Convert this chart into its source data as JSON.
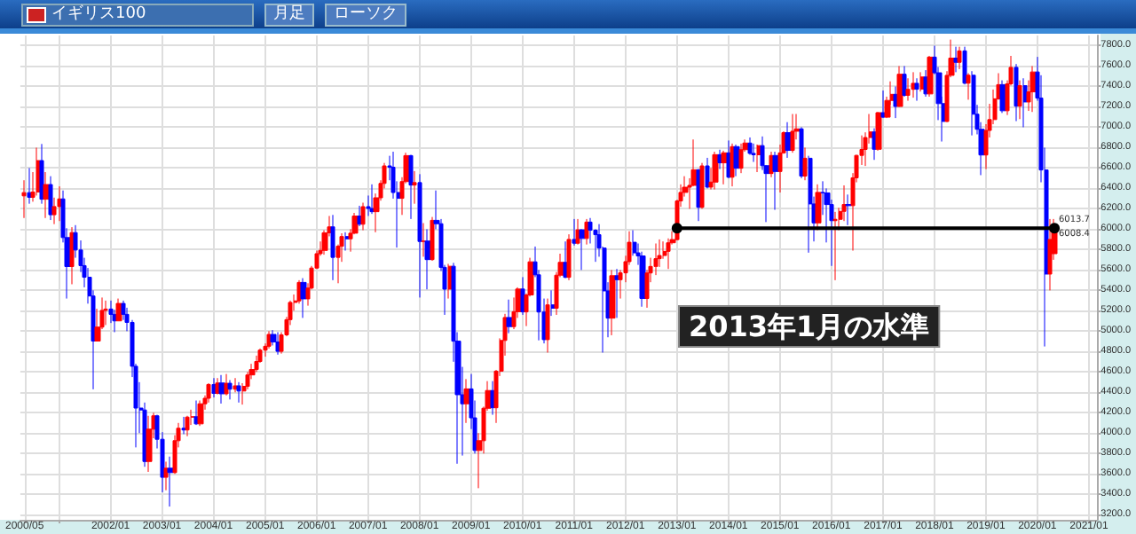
{
  "chart_data": {
    "type": "candlestick",
    "title": "イギリス100",
    "annotations": [
      "月足",
      "ローソク",
      "2013年1月の水準",
      {
        "text": "6013.7",
        "x": "2020-06",
        "y": 6013.7
      },
      {
        "text": "6008.4",
        "x": "2020-06",
        "y": 6008.4
      }
    ],
    "xlim": [
      "2000-04",
      "2021-03"
    ],
    "xticks": [
      {
        "value": "2000-05",
        "label": "2000/05"
      },
      {
        "value": "2001-01",
        "label": null
      },
      {
        "value": "2002-01",
        "label": "2002/01"
      },
      {
        "value": "2003-01",
        "label": "2003/01"
      },
      {
        "value": "2004-01",
        "label": "2004/01"
      },
      {
        "value": "2005-01",
        "label": "2005/01"
      },
      {
        "value": "2006-01",
        "label": "2006/01"
      },
      {
        "value": "2007-01",
        "label": "2007/01"
      },
      {
        "value": "2008-01",
        "label": "2008/01"
      },
      {
        "value": "2009-01",
        "label": "2009/01"
      },
      {
        "value": "2010-01",
        "label": "2010/01"
      },
      {
        "value": "2011-01",
        "label": "2011/01"
      },
      {
        "value": "2012-01",
        "label": "2012/01"
      },
      {
        "value": "2013-01",
        "label": "2013/01"
      },
      {
        "value": "2014-01",
        "label": "2014/01"
      },
      {
        "value": "2015-01",
        "label": "2015/01"
      },
      {
        "value": "2016-01",
        "label": "2016/01"
      },
      {
        "value": "2017-01",
        "label": "2017/01"
      },
      {
        "value": "2018-01",
        "label": "2018/01"
      },
      {
        "value": "2019-01",
        "label": "2019/01"
      },
      {
        "value": "2020-01",
        "label": "2020/01"
      },
      {
        "value": "2021-01",
        "label": "2021/01"
      }
    ],
    "ylim": [
      3150,
      7900
    ],
    "yticks": [
      {
        "value": 3200,
        "label": "3200.0"
      },
      {
        "value": 3400,
        "label": "3400.0"
      },
      {
        "value": 3600,
        "label": "3600.0"
      },
      {
        "value": 3800,
        "label": "3800.0"
      },
      {
        "value": 4000,
        "label": "4000.0"
      },
      {
        "value": 4200,
        "label": "4200.0"
      },
      {
        "value": 4400,
        "label": "4400.0"
      },
      {
        "value": 4600,
        "label": "4600.0"
      },
      {
        "value": 4800,
        "label": "4800.0"
      },
      {
        "value": 5000,
        "label": "5000.0"
      },
      {
        "value": 5200,
        "label": "5200.0"
      },
      {
        "value": 5400,
        "label": "5400.0"
      },
      {
        "value": 5600,
        "label": "5600.0"
      },
      {
        "value": 5800,
        "label": "5800.0"
      },
      {
        "value": 6000,
        "label": "6000.0"
      },
      {
        "value": 6200,
        "label": "6200.0"
      },
      {
        "value": 6400,
        "label": "6400.0"
      },
      {
        "value": 6600,
        "label": "6600.0"
      },
      {
        "value": 6800,
        "label": "6800.0"
      },
      {
        "value": 7000,
        "label": "7000.0"
      },
      {
        "value": 7200,
        "label": "7200.0"
      },
      {
        "value": 7400,
        "label": "7400.0"
      },
      {
        "value": 7600,
        "label": "7600.0"
      },
      {
        "value": 7800,
        "label": "7800.0"
      }
    ],
    "grid": true,
    "series": [
      {
        "colors": [
          "#ff0000",
          "#0000ff",
          "#ff0000",
          "#ff0000",
          "#0000ff",
          "#ff0000",
          "#0000ff",
          "#ff0000",
          "#ff0000",
          "#0000ff",
          "#0000ff",
          "#ff0000",
          "#0000ff",
          "#0000ff",
          "#0000ff",
          "#0000ff",
          "#0000ff",
          "#ff0000",
          "#ff0000",
          "#ff0000",
          "#0000ff",
          "#0000ff",
          "#ff0000",
          "#0000ff",
          "#0000ff",
          "#0000ff",
          "#0000ff",
          "#0000ff",
          "#0000ff",
          "#ff0000",
          "#ff0000",
          "#0000ff",
          "#0000ff",
          "#ff0000",
          "#0000ff",
          "#ff0000",
          "#ff0000",
          "#0000ff",
          "#ff0000",
          "#ff0000",
          "#0000ff",
          "#ff0000",
          "#ff0000",
          "#ff0000",
          "#0000ff",
          "#ff0000",
          "#0000ff",
          "#ff0000",
          "#0000ff",
          "#ff0000",
          "#0000ff",
          "#ff0000",
          "#ff0000",
          "#ff0000",
          "#ff0000",
          "#ff0000",
          "#ff0000",
          "#ff0000",
          "#0000ff",
          "#0000ff",
          "#ff0000",
          "#ff0000",
          "#ff0000",
          "#ff0000",
          "#ff0000",
          "#0000ff",
          "#ff0000",
          "#ff0000",
          "#ff0000",
          "#ff0000",
          "#ff0000",
          "#ff0000",
          "#0000ff",
          "#ff0000",
          "#ff0000",
          "#0000ff",
          "#ff0000",
          "#ff0000",
          "#0000ff",
          "#ff0000",
          "#0000ff",
          "#0000ff",
          "#ff0000",
          "#ff0000",
          "#ff0000",
          "#0000ff",
          "#0000ff",
          "#0000ff",
          "#ff0000",
          "#ff0000",
          "#0000ff",
          "#ff0000",
          "#0000ff",
          "#ff0000",
          "#0000ff",
          "#ff0000",
          "#0000ff",
          "#0000ff",
          "#0000ff",
          "#ff0000",
          "#0000ff",
          "#0000ff",
          "#0000ff",
          "#ff0000",
          "#0000ff",
          "#0000ff",
          "#ff0000",
          "#ff0000",
          "#ff0000",
          "#0000ff",
          "#ff0000",
          "#ff0000",
          "#ff0000",
          "#0000ff",
          "#ff0000",
          "#ff0000",
          "#0000ff",
          "#ff0000",
          "#ff0000",
          "#0000ff",
          "#0000ff",
          "#0000ff",
          "#ff0000",
          "#0000ff",
          "#ff0000",
          "#ff0000",
          "#0000ff",
          "#ff0000",
          "#0000ff",
          "#ff0000",
          "#0000ff",
          "#ff0000",
          "#0000ff",
          "#0000ff",
          "#0000ff",
          "#0000ff",
          "#0000ff",
          "#ff0000",
          "#0000ff",
          "#ff0000",
          "#ff0000",
          "#ff0000",
          "#0000ff",
          "#0000ff",
          "#0000ff",
          "#ff0000",
          "#ff0000",
          "#ff0000",
          "#ff0000",
          "#ff0000",
          "#ff0000",
          "#ff0000",
          "#ff0000",
          "#ff0000",
          "#ff0000",
          "#ff0000",
          "#ff0000",
          "#0000ff",
          "#ff0000",
          "#0000ff",
          "#ff0000",
          "#ff0000",
          "#0000ff",
          "#ff0000",
          "#0000ff",
          "#ff0000",
          "#0000ff",
          "#ff0000",
          "#ff0000",
          "#0000ff",
          "#0000ff",
          "#ff0000",
          "#0000ff",
          "#0000ff",
          "#ff0000",
          "#0000ff",
          "#ff0000",
          "#ff0000",
          "#0000ff",
          "#ff0000",
          "#ff0000",
          "#0000ff",
          "#ff0000",
          "#0000ff",
          "#0000ff",
          "#ff0000",
          "#0000ff",
          "#0000ff",
          "#0000ff",
          "#ff0000",
          "#ff0000",
          "#ff0000",
          "#0000ff",
          "#ff0000",
          "#ff0000",
          "#ff0000",
          "#ff0000",
          "#ff0000",
          "#0000ff",
          "#ff0000",
          "#0000ff",
          "#ff0000",
          "#ff0000",
          "#0000ff",
          "#ff0000",
          "#0000ff",
          "#ff0000",
          "#ff0000",
          "#0000ff",
          "#ff0000",
          "#0000ff",
          "#ff0000",
          "#0000ff",
          "#0000ff",
          "#0000ff",
          "#ff0000",
          "#ff0000",
          "#0000ff",
          "#ff0000",
          "#0000ff",
          "#ff0000",
          "#0000ff",
          "#0000ff",
          "#0000ff",
          "#ff0000",
          "#ff0000",
          "#ff0000",
          "#ff0000",
          "#0000ff",
          "#ff0000",
          "#ff0000",
          "#0000ff",
          "#ff0000",
          "#0000ff",
          "#ff0000",
          "#ff0000",
          "#0000ff",
          "#0000ff",
          "#0000ff",
          "#ff0000",
          "#ff0000"
        ],
        "x": [
          "2000-05",
          "2000-06",
          "2000-07",
          "2000-08",
          "2000-09",
          "2000-10",
          "2000-11",
          "2000-12",
          "2001-01",
          "2001-02",
          "2001-03",
          "2001-04",
          "2001-05",
          "2001-06",
          "2001-07",
          "2001-08",
          "2001-09",
          "2001-10",
          "2001-11",
          "2001-12",
          "2002-01",
          "2002-02",
          "2002-03",
          "2002-04",
          "2002-05",
          "2002-06",
          "2002-07",
          "2002-08",
          "2002-09",
          "2002-10",
          "2002-11",
          "2002-12",
          "2003-01",
          "2003-02",
          "2003-03",
          "2003-04",
          "2003-05",
          "2003-06",
          "2003-07",
          "2003-08",
          "2003-09",
          "2003-10",
          "2003-11",
          "2003-12",
          "2004-01",
          "2004-02",
          "2004-03",
          "2004-04",
          "2004-05",
          "2004-06",
          "2004-07",
          "2004-08",
          "2004-09",
          "2004-10",
          "2004-11",
          "2004-12",
          "2005-01",
          "2005-02",
          "2005-03",
          "2005-04",
          "2005-05",
          "2005-06",
          "2005-07",
          "2005-08",
          "2005-09",
          "2005-10",
          "2005-11",
          "2005-12",
          "2006-01",
          "2006-02",
          "2006-03",
          "2006-04",
          "2006-05",
          "2006-06",
          "2006-07",
          "2006-08",
          "2006-09",
          "2006-10",
          "2006-11",
          "2006-12",
          "2007-01",
          "2007-02",
          "2007-03",
          "2007-04",
          "2007-05",
          "2007-06",
          "2007-07",
          "2007-08",
          "2007-09",
          "2007-10",
          "2007-11",
          "2007-12",
          "2008-01",
          "2008-02",
          "2008-03",
          "2008-04",
          "2008-05",
          "2008-06",
          "2008-07",
          "2008-08",
          "2008-09",
          "2008-10",
          "2008-11",
          "2008-12",
          "2009-01",
          "2009-02",
          "2009-03",
          "2009-04",
          "2009-05",
          "2009-06",
          "2009-07",
          "2009-08",
          "2009-09",
          "2009-10",
          "2009-11",
          "2009-12",
          "2010-01",
          "2010-02",
          "2010-03",
          "2010-04",
          "2010-05",
          "2010-06",
          "2010-07",
          "2010-08",
          "2010-09",
          "2010-10",
          "2010-11",
          "2010-12",
          "2011-01",
          "2011-02",
          "2011-03",
          "2011-04",
          "2011-05",
          "2011-06",
          "2011-07",
          "2011-08",
          "2011-09",
          "2011-10",
          "2011-11",
          "2011-12",
          "2012-01",
          "2012-02",
          "2012-03",
          "2012-04",
          "2012-05",
          "2012-06",
          "2012-07",
          "2012-08",
          "2012-09",
          "2012-10",
          "2012-11",
          "2012-12",
          "2013-01",
          "2013-02",
          "2013-03",
          "2013-04",
          "2013-05",
          "2013-06",
          "2013-07",
          "2013-08",
          "2013-09",
          "2013-10",
          "2013-11",
          "2013-12",
          "2014-01",
          "2014-02",
          "2014-03",
          "2014-04",
          "2014-05",
          "2014-06",
          "2014-07",
          "2014-08",
          "2014-09",
          "2014-10",
          "2014-11",
          "2014-12",
          "2015-01",
          "2015-02",
          "2015-03",
          "2015-04",
          "2015-05",
          "2015-06",
          "2015-07",
          "2015-08",
          "2015-09",
          "2015-10",
          "2015-11",
          "2015-12",
          "2016-01",
          "2016-02",
          "2016-03",
          "2016-04",
          "2016-05",
          "2016-06",
          "2016-07",
          "2016-08",
          "2016-09",
          "2016-10",
          "2016-11",
          "2016-12",
          "2017-01",
          "2017-02",
          "2017-03",
          "2017-04",
          "2017-05",
          "2017-06",
          "2017-07",
          "2017-08",
          "2017-09",
          "2017-10",
          "2017-11",
          "2017-12",
          "2018-01",
          "2018-02",
          "2018-03",
          "2018-04",
          "2018-05",
          "2018-06",
          "2018-07",
          "2018-08",
          "2018-09",
          "2018-10",
          "2018-11",
          "2018-12",
          "2019-01",
          "2019-02",
          "2019-03",
          "2019-04",
          "2019-05",
          "2019-06",
          "2019-07",
          "2019-08",
          "2019-09",
          "2019-10",
          "2019-11",
          "2019-12",
          "2020-01",
          "2020-02",
          "2020-03",
          "2020-04",
          "2020-05"
        ],
        "ohlc": [
          [
            6327,
            6480,
            6110,
            6359
          ],
          [
            6359,
            6600,
            6250,
            6313
          ],
          [
            6313,
            6560,
            6270,
            6365
          ],
          [
            6365,
            6800,
            6330,
            6673
          ],
          [
            6673,
            6836,
            6250,
            6294
          ],
          [
            6294,
            6560,
            6110,
            6438
          ],
          [
            6438,
            6520,
            6090,
            6142
          ],
          [
            6142,
            6310,
            6050,
            6222
          ],
          [
            6222,
            6420,
            6080,
            6297
          ],
          [
            6297,
            6380,
            5870,
            5918
          ],
          [
            5918,
            6010,
            5320,
            5634
          ],
          [
            5634,
            6020,
            5460,
            5967
          ],
          [
            5967,
            6040,
            5720,
            5796
          ],
          [
            5796,
            5890,
            5580,
            5643
          ],
          [
            5643,
            5720,
            5430,
            5529
          ],
          [
            5529,
            5620,
            5270,
            5345
          ],
          [
            5345,
            5400,
            4430,
            4903
          ],
          [
            4903,
            5220,
            4900,
            5040
          ],
          [
            5040,
            5330,
            5020,
            5204
          ],
          [
            5204,
            5300,
            5060,
            5217
          ],
          [
            5217,
            5300,
            5080,
            5165
          ],
          [
            5165,
            5210,
            4990,
            5101
          ],
          [
            5101,
            5320,
            5100,
            5272
          ],
          [
            5272,
            5300,
            5110,
            5165
          ],
          [
            5165,
            5230,
            5000,
            5086
          ],
          [
            5086,
            5110,
            4550,
            4656
          ],
          [
            4656,
            4680,
            3860,
            4246
          ],
          [
            4246,
            4500,
            4000,
            4227
          ],
          [
            4227,
            4300,
            3670,
            3722
          ],
          [
            3722,
            4170,
            3620,
            4039
          ],
          [
            4039,
            4200,
            3950,
            4170
          ],
          [
            4170,
            4180,
            3850,
            3940
          ],
          [
            3940,
            4010,
            3420,
            3567
          ],
          [
            3567,
            3720,
            3440,
            3656
          ],
          [
            3656,
            3770,
            3280,
            3613
          ],
          [
            3613,
            3980,
            3600,
            3926
          ],
          [
            3926,
            4100,
            3860,
            4048
          ],
          [
            4048,
            4160,
            3990,
            4031
          ],
          [
            4031,
            4170,
            3970,
            4157
          ],
          [
            4157,
            4230,
            4080,
            4161
          ],
          [
            4161,
            4320,
            4080,
            4091
          ],
          [
            4091,
            4320,
            4070,
            4288
          ],
          [
            4288,
            4370,
            4230,
            4342
          ],
          [
            4342,
            4490,
            4300,
            4477
          ],
          [
            4477,
            4540,
            4350,
            4390
          ],
          [
            4390,
            4540,
            4380,
            4492
          ],
          [
            4492,
            4570,
            4290,
            4386
          ],
          [
            4386,
            4580,
            4370,
            4489
          ],
          [
            4489,
            4520,
            4330,
            4431
          ],
          [
            4431,
            4540,
            4400,
            4464
          ],
          [
            4464,
            4500,
            4300,
            4413
          ],
          [
            4413,
            4490,
            4280,
            4459
          ],
          [
            4459,
            4600,
            4430,
            4571
          ],
          [
            4571,
            4680,
            4530,
            4624
          ],
          [
            4624,
            4760,
            4600,
            4703
          ],
          [
            4703,
            4830,
            4690,
            4814
          ],
          [
            4814,
            4880,
            4750,
            4852
          ],
          [
            4852,
            5000,
            4830,
            4968
          ],
          [
            4968,
            5010,
            4860,
            4894
          ],
          [
            4894,
            4990,
            4770,
            4802
          ],
          [
            4802,
            4990,
            4780,
            4964
          ],
          [
            4964,
            5140,
            4950,
            5113
          ],
          [
            5113,
            5300,
            5060,
            5282
          ],
          [
            5282,
            5360,
            5200,
            5297
          ],
          [
            5297,
            5500,
            5270,
            5478
          ],
          [
            5478,
            5520,
            5130,
            5317
          ],
          [
            5317,
            5470,
            5250,
            5423
          ],
          [
            5423,
            5640,
            5410,
            5619
          ],
          [
            5619,
            5790,
            5610,
            5760
          ],
          [
            5760,
            5880,
            5740,
            5792
          ],
          [
            5792,
            5990,
            5750,
            5965
          ],
          [
            5965,
            6130,
            5930,
            6023
          ],
          [
            6023,
            6140,
            5500,
            5724
          ],
          [
            5724,
            5850,
            5470,
            5833
          ],
          [
            5833,
            5960,
            5680,
            5928
          ],
          [
            5928,
            5970,
            5790,
            5906
          ],
          [
            5906,
            6000,
            5780,
            5961
          ],
          [
            5961,
            6160,
            5950,
            6129
          ],
          [
            6129,
            6230,
            6030,
            6049
          ],
          [
            6049,
            6260,
            5990,
            6221
          ],
          [
            6221,
            6330,
            6130,
            6203
          ],
          [
            6203,
            6440,
            6150,
            6172
          ],
          [
            6172,
            6350,
            5970,
            6308
          ],
          [
            6308,
            6480,
            6280,
            6449
          ],
          [
            6449,
            6650,
            6400,
            6621
          ],
          [
            6621,
            6720,
            6480,
            6608
          ],
          [
            6608,
            6760,
            6300,
            6360
          ],
          [
            6360,
            6470,
            5820,
            6303
          ],
          [
            6303,
            6510,
            6140,
            6467
          ],
          [
            6467,
            6750,
            6450,
            6722
          ],
          [
            6722,
            6730,
            6100,
            6433
          ],
          [
            6433,
            6570,
            6250,
            6457
          ],
          [
            6457,
            6540,
            5330,
            5880
          ],
          [
            5880,
            6060,
            5730,
            5884
          ],
          [
            5884,
            6000,
            5410,
            5702
          ],
          [
            5702,
            6120,
            5690,
            6087
          ],
          [
            6087,
            6380,
            6000,
            6054
          ],
          [
            6054,
            6100,
            5590,
            5626
          ],
          [
            5626,
            5650,
            5160,
            5412
          ],
          [
            5412,
            5660,
            5320,
            5637
          ],
          [
            5637,
            5670,
            4700,
            4902
          ],
          [
            4902,
            4990,
            3700,
            4377
          ],
          [
            4377,
            4650,
            3780,
            4288
          ],
          [
            4288,
            4530,
            4100,
            4434
          ],
          [
            4434,
            4580,
            4040,
            4150
          ],
          [
            4150,
            4320,
            3800,
            3830
          ],
          [
            3830,
            4000,
            3460,
            3926
          ],
          [
            3926,
            4260,
            3800,
            4244
          ],
          [
            4244,
            4510,
            4220,
            4418
          ],
          [
            4418,
            4510,
            4180,
            4249
          ],
          [
            4249,
            4620,
            4100,
            4608
          ],
          [
            4608,
            4930,
            4560,
            4909
          ],
          [
            4909,
            5170,
            4760,
            5134
          ],
          [
            5134,
            5310,
            4980,
            5045
          ],
          [
            5045,
            5330,
            5020,
            5191
          ],
          [
            5191,
            5430,
            5130,
            5413
          ],
          [
            5413,
            5530,
            5160,
            5189
          ],
          [
            5189,
            5370,
            5050,
            5355
          ],
          [
            5355,
            5720,
            5340,
            5680
          ],
          [
            5680,
            5830,
            5530,
            5553
          ],
          [
            5553,
            5600,
            4910,
            5188
          ],
          [
            5188,
            5320,
            4880,
            4917
          ],
          [
            4917,
            5320,
            4790,
            5258
          ],
          [
            5258,
            5400,
            5150,
            5225
          ],
          [
            5225,
            5580,
            5160,
            5549
          ],
          [
            5549,
            5760,
            5530,
            5675
          ],
          [
            5675,
            5880,
            5520,
            5528
          ],
          [
            5528,
            5950,
            5500,
            5900
          ],
          [
            5900,
            6100,
            5840,
            5863
          ],
          [
            5863,
            6100,
            5850,
            5994
          ],
          [
            5994,
            6000,
            5600,
            5909
          ],
          [
            5909,
            6100,
            5850,
            6070
          ],
          [
            6070,
            6110,
            5860,
            5990
          ],
          [
            5990,
            6000,
            5680,
            5946
          ],
          [
            5946,
            6050,
            5730,
            5815
          ],
          [
            5815,
            5830,
            4790,
            5395
          ],
          [
            5395,
            5480,
            4940,
            5128
          ],
          [
            5128,
            5600,
            4960,
            5544
          ],
          [
            5544,
            5610,
            5130,
            5505
          ],
          [
            5505,
            5600,
            5320,
            5572
          ],
          [
            5572,
            5740,
            5480,
            5682
          ],
          [
            5682,
            5980,
            5650,
            5872
          ],
          [
            5872,
            5990,
            5740,
            5768
          ],
          [
            5768,
            5860,
            5650,
            5738
          ],
          [
            5738,
            5780,
            5240,
            5321
          ],
          [
            5321,
            5600,
            5230,
            5571
          ],
          [
            5571,
            5720,
            5480,
            5635
          ],
          [
            5635,
            5860,
            5550,
            5711
          ],
          [
            5711,
            5900,
            5630,
            5742
          ],
          [
            5742,
            5880,
            5710,
            5783
          ],
          [
            5783,
            5910,
            5610,
            5867
          ],
          [
            5867,
            5980,
            5850,
            5898
          ],
          [
            5898,
            6290,
            5890,
            6277
          ],
          [
            6277,
            6440,
            6220,
            6361
          ],
          [
            6361,
            6520,
            6320,
            6412
          ],
          [
            6412,
            6500,
            6200,
            6430
          ],
          [
            6430,
            6880,
            6420,
            6583
          ],
          [
            6583,
            6590,
            6080,
            6215
          ],
          [
            6215,
            6650,
            6200,
            6621
          ],
          [
            6621,
            6700,
            6400,
            6413
          ],
          [
            6413,
            6600,
            6390,
            6462
          ],
          [
            6462,
            6760,
            6390,
            6731
          ],
          [
            6731,
            6780,
            6590,
            6651
          ],
          [
            6651,
            6770,
            6440,
            6749
          ],
          [
            6749,
            6870,
            6500,
            6510
          ],
          [
            6510,
            6840,
            6420,
            6810
          ],
          [
            6810,
            6830,
            6520,
            6598
          ],
          [
            6598,
            6840,
            6550,
            6780
          ],
          [
            6780,
            6880,
            6760,
            6845
          ],
          [
            6845,
            6900,
            6730,
            6744
          ],
          [
            6744,
            6840,
            6660,
            6730
          ],
          [
            6730,
            6830,
            6560,
            6820
          ],
          [
            6820,
            6910,
            6580,
            6623
          ],
          [
            6623,
            6630,
            6070,
            6546
          ],
          [
            6546,
            6760,
            6510,
            6723
          ],
          [
            6723,
            6760,
            6190,
            6566
          ],
          [
            6566,
            6830,
            6360,
            6749
          ],
          [
            6749,
            6960,
            6740,
            6947
          ],
          [
            6947,
            7050,
            6700,
            6773
          ],
          [
            6773,
            7130,
            6750,
            6961
          ],
          [
            6961,
            7130,
            6880,
            6984
          ],
          [
            6984,
            7000,
            6500,
            6521
          ],
          [
            6521,
            6800,
            6480,
            6696
          ],
          [
            6696,
            6720,
            5770,
            6248
          ],
          [
            6248,
            6320,
            5880,
            6062
          ],
          [
            6062,
            6440,
            5990,
            6361
          ],
          [
            6361,
            6470,
            6140,
            6356
          ],
          [
            6356,
            6400,
            5870,
            6242
          ],
          [
            6242,
            6290,
            5640,
            6084
          ],
          [
            6084,
            6170,
            5500,
            6097
          ],
          [
            6097,
            6210,
            5990,
            6175
          ],
          [
            6175,
            6430,
            6080,
            6242
          ],
          [
            6242,
            6340,
            6040,
            6231
          ],
          [
            6231,
            6550,
            5790,
            6504
          ],
          [
            6504,
            6730,
            6460,
            6724
          ],
          [
            6724,
            6920,
            6630,
            6782
          ],
          [
            6782,
            6950,
            6620,
            6899
          ],
          [
            6899,
            7130,
            6840,
            6954
          ],
          [
            6954,
            6990,
            6680,
            6784
          ],
          [
            6784,
            7150,
            6770,
            7143
          ],
          [
            7143,
            7360,
            7090,
            7099
          ],
          [
            7099,
            7300,
            7090,
            7263
          ],
          [
            7263,
            7450,
            7220,
            7323
          ],
          [
            7323,
            7400,
            7090,
            7204
          ],
          [
            7204,
            7600,
            7200,
            7520
          ],
          [
            7520,
            7600,
            7300,
            7313
          ],
          [
            7313,
            7480,
            7260,
            7372
          ],
          [
            7372,
            7540,
            7290,
            7431
          ],
          [
            7431,
            7480,
            7260,
            7373
          ],
          [
            7373,
            7540,
            7350,
            7493
          ],
          [
            7493,
            7560,
            7300,
            7327
          ],
          [
            7327,
            7700,
            7300,
            7688
          ],
          [
            7688,
            7800,
            7520,
            7534
          ],
          [
            7534,
            7590,
            7070,
            7232
          ],
          [
            7232,
            7300,
            6860,
            7057
          ],
          [
            7057,
            7550,
            7050,
            7509
          ],
          [
            7509,
            7860,
            7490,
            7678
          ],
          [
            7678,
            7790,
            7540,
            7637
          ],
          [
            7637,
            7790,
            7570,
            7749
          ],
          [
            7749,
            7790,
            7420,
            7432
          ],
          [
            7432,
            7530,
            7270,
            7510
          ],
          [
            7510,
            7550,
            6920,
            7128
          ],
          [
            7128,
            7220,
            6930,
            6980
          ],
          [
            6980,
            7050,
            6530,
            6728
          ],
          [
            6728,
            7030,
            6590,
            6969
          ],
          [
            6969,
            7230,
            6900,
            7075
          ],
          [
            7075,
            7370,
            7030,
            7279
          ],
          [
            7279,
            7530,
            7270,
            7418
          ],
          [
            7418,
            7460,
            7140,
            7162
          ],
          [
            7162,
            7460,
            7120,
            7426
          ],
          [
            7426,
            7700,
            7410,
            7587
          ],
          [
            7587,
            7620,
            7060,
            7207
          ],
          [
            7207,
            7460,
            7080,
            7408
          ],
          [
            7408,
            7480,
            7000,
            7248
          ],
          [
            7248,
            7460,
            7160,
            7347
          ],
          [
            7347,
            7600,
            7150,
            7542
          ],
          [
            7542,
            7690,
            7260,
            7286
          ],
          [
            7286,
            7510,
            6460,
            6581
          ],
          [
            6581,
            6800,
            4850,
            5560
          ],
          [
            5560,
            6100,
            5400,
            5900
          ],
          [
            5760,
            6100,
            5700,
            6010
          ]
        ]
      },
      {
        "type": "line",
        "color": "#000000",
        "marker": "circle",
        "line_style": "solid",
        "x": [
          "2013-01",
          "2020-05"
        ],
        "values": [
          6010,
          6010
        ]
      }
    ]
  }
}
